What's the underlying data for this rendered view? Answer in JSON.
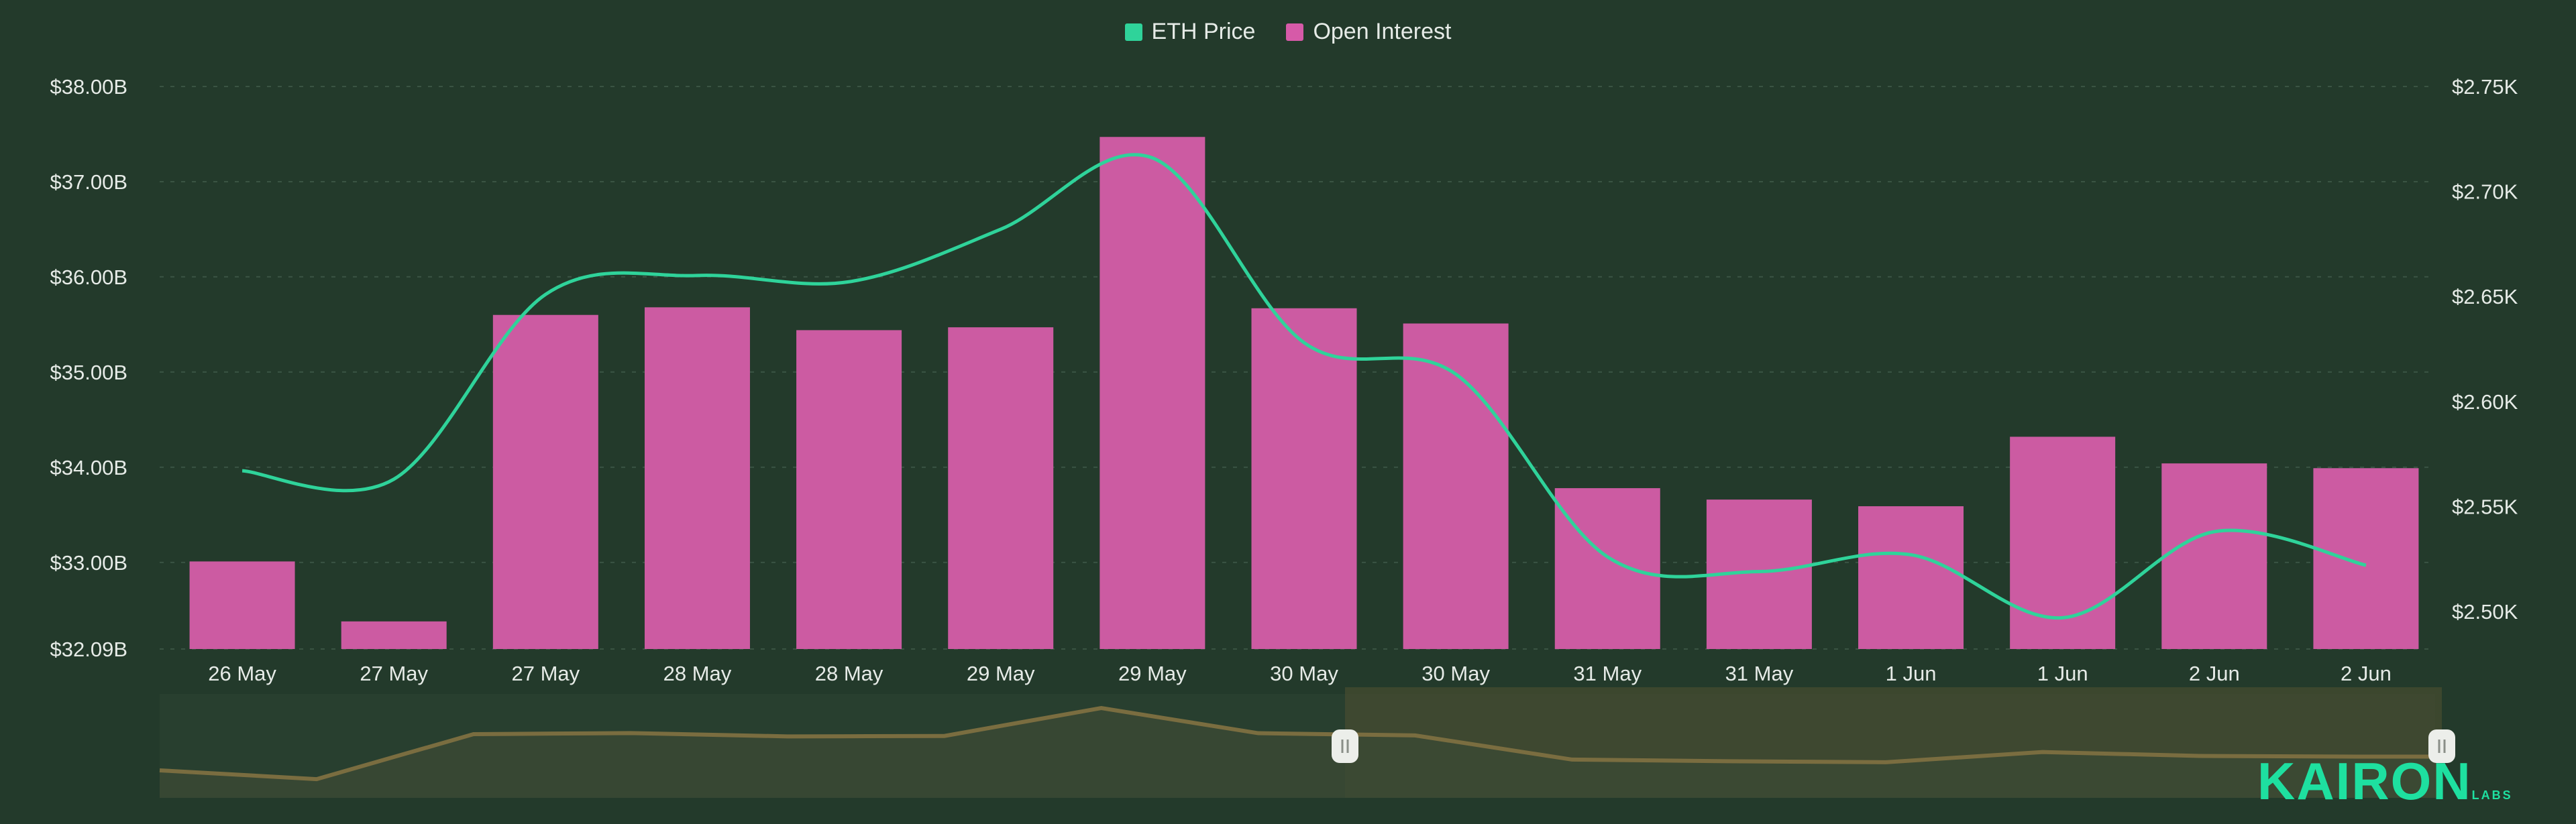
{
  "legend": [
    {
      "label": "ETH Price",
      "color": "#2fd39a"
    },
    {
      "label": "Open Interest",
      "color": "#d65aa8"
    }
  ],
  "left_axis": {
    "ticks": [
      "$38.00B",
      "$37.00B",
      "$36.00B",
      "$35.00B",
      "$34.00B",
      "$33.00B",
      "$32.09B"
    ]
  },
  "right_axis": {
    "ticks": [
      "$2.75K",
      "$2.70K",
      "$2.65K",
      "$2.60K",
      "$2.55K",
      "$2.50K"
    ]
  },
  "x_axis": {
    "ticks": [
      "26 May",
      "27 May",
      "27 May",
      "28 May",
      "28 May",
      "29 May",
      "29 May",
      "30 May",
      "30 May",
      "31 May",
      "31 May",
      "1 Jun",
      "1 Jun",
      "2 Jun",
      "2 Jun"
    ]
  },
  "brand": {
    "name": "KAIRON",
    "suffix": "LABS"
  },
  "colors": {
    "background": "#233a2b",
    "bar": "#cc5ba2",
    "line": "#2fd39a",
    "navigator_line": "#7a6d40",
    "navigator_fill": "#3b4a35",
    "navigator_selected": "#474d30"
  },
  "chart_data": {
    "type": "bar",
    "title": "",
    "categories": [
      "26 May",
      "27 May",
      "27 May",
      "28 May",
      "28 May",
      "29 May",
      "29 May",
      "30 May",
      "30 May",
      "31 May",
      "31 May",
      "1 Jun",
      "1 Jun",
      "2 Jun",
      "2 Jun"
    ],
    "series": [
      {
        "name": "Open Interest",
        "type": "bar",
        "axis": "left",
        "unit": "USD billions",
        "values": [
          33.01,
          32.38,
          35.6,
          35.68,
          35.44,
          35.47,
          37.47,
          35.67,
          35.51,
          33.78,
          33.66,
          33.59,
          34.32,
          34.04,
          33.99
        ]
      },
      {
        "name": "ETH Price",
        "type": "line",
        "axis": "right",
        "unit": "USD thousands",
        "values": [
          2.567,
          2.563,
          2.651,
          2.66,
          2.657,
          2.682,
          2.716,
          2.628,
          2.613,
          2.526,
          2.519,
          2.527,
          2.497,
          2.538,
          2.522
        ]
      }
    ],
    "left_ylim": [
      32.09,
      38.0
    ],
    "right_ylim": [
      2.5,
      2.75
    ],
    "xlabel": "",
    "ylabel_left": "Open Interest",
    "ylabel_right": "ETH Price",
    "grid": true,
    "legend_position": "top"
  }
}
